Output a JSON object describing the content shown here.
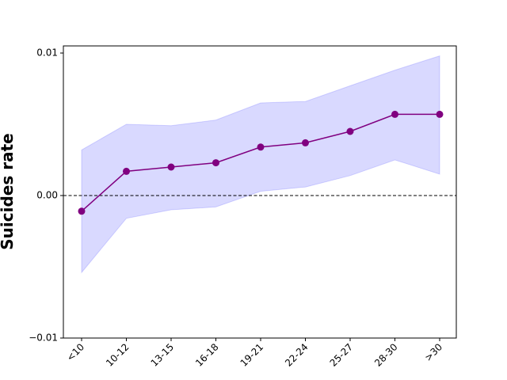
{
  "chart_data": {
    "type": "line",
    "title": "",
    "xlabel": "",
    "ylabel": "Suicides rate",
    "categories": [
      "<10",
      "10-12",
      "13-15",
      "16-18",
      "19-21",
      "22-24",
      "25-27",
      "28-30",
      ">30"
    ],
    "series": [
      {
        "values": [
          -0.0011,
          0.0017,
          0.002,
          0.0023,
          0.0034,
          0.0037,
          0.0045,
          0.0057,
          0.0057
        ],
        "ci_lower": [
          -0.0054,
          -0.0016,
          -0.001,
          -0.0008,
          0.0003,
          0.0006,
          0.0014,
          0.0025,
          0.0015
        ],
        "ci_upper": [
          0.0032,
          0.005,
          0.0049,
          0.0053,
          0.0065,
          0.0066,
          0.0077,
          0.0088,
          0.0098
        ]
      }
    ],
    "ylim": [
      -0.01,
      0.0105
    ],
    "yticks": [
      -0.01,
      0.0,
      0.01
    ],
    "ytick_labels": [
      "−0.01",
      "0.00",
      "0.01"
    ],
    "reference_line": 0,
    "grid": false,
    "colors": {
      "line": "#800080",
      "band": "#0000ff",
      "reference": "#000000"
    }
  }
}
